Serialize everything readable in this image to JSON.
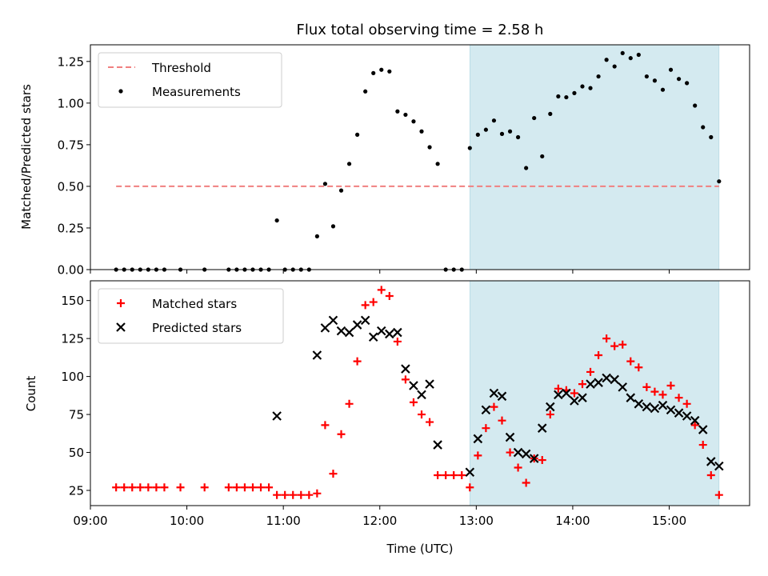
{
  "chart_data": [
    {
      "type": "scatter",
      "title": "Flux total observing time = 2.58 h",
      "xlabel": "",
      "ylabel": "Matched/Predicted stars",
      "xlim": [
        "09:00",
        "15:50"
      ],
      "ylim": [
        0,
        1.35
      ],
      "y_ticks": [
        "0.00",
        "0.25",
        "0.50",
        "0.75",
        "1.00",
        "1.25"
      ],
      "legend_position": "top-left",
      "highlight_span": {
        "start": "12:56",
        "end": "15:31"
      },
      "threshold": {
        "name": "Threshold",
        "value": 0.5,
        "from": "09:16",
        "to": "15:31",
        "color": "#f08080",
        "style": "dashed"
      },
      "series": [
        {
          "name": "Measurements",
          "marker": "dot",
          "color": "#000000",
          "points": [
            [
              "09:16",
              0.0
            ],
            [
              "09:21",
              0.0
            ],
            [
              "09:26",
              0.0
            ],
            [
              "09:31",
              0.0
            ],
            [
              "09:36",
              0.0
            ],
            [
              "09:41",
              0.0
            ],
            [
              "09:46",
              0.0
            ],
            [
              "09:56",
              0.0
            ],
            [
              "10:11",
              0.0
            ],
            [
              "10:26",
              0.0
            ],
            [
              "10:31",
              0.0
            ],
            [
              "10:36",
              0.0
            ],
            [
              "10:41",
              0.0
            ],
            [
              "10:46",
              0.0
            ],
            [
              "10:51",
              0.0
            ],
            [
              "10:56",
              0.295
            ],
            [
              "11:01",
              0.0
            ],
            [
              "11:06",
              0.0
            ],
            [
              "11:11",
              0.0
            ],
            [
              "11:16",
              0.0
            ],
            [
              "11:21",
              0.2
            ],
            [
              "11:26",
              0.515
            ],
            [
              "11:31",
              0.26
            ],
            [
              "11:36",
              0.475
            ],
            [
              "11:41",
              0.635
            ],
            [
              "11:46",
              0.81
            ],
            [
              "11:51",
              1.07
            ],
            [
              "11:56",
              1.18
            ],
            [
              "12:01",
              1.2
            ],
            [
              "12:06",
              1.19
            ],
            [
              "12:11",
              0.95
            ],
            [
              "12:16",
              0.93
            ],
            [
              "12:21",
              0.89
            ],
            [
              "12:26",
              0.83
            ],
            [
              "12:31",
              0.735
            ],
            [
              "12:36",
              0.635
            ],
            [
              "12:41",
              0.0
            ],
            [
              "12:46",
              0.0
            ],
            [
              "12:51",
              0.0
            ],
            [
              "12:56",
              0.73
            ],
            [
              "13:01",
              0.81
            ],
            [
              "13:06",
              0.84
            ],
            [
              "13:11",
              0.895
            ],
            [
              "13:16",
              0.815
            ],
            [
              "13:21",
              0.83
            ],
            [
              "13:26",
              0.795
            ],
            [
              "13:31",
              0.61
            ],
            [
              "13:36",
              0.91
            ],
            [
              "13:41",
              0.68
            ],
            [
              "13:46",
              0.935
            ],
            [
              "13:51",
              1.04
            ],
            [
              "13:56",
              1.035
            ],
            [
              "14:01",
              1.06
            ],
            [
              "14:06",
              1.1
            ],
            [
              "14:11",
              1.09
            ],
            [
              "14:16",
              1.16
            ],
            [
              "14:21",
              1.26
            ],
            [
              "14:26",
              1.22
            ],
            [
              "14:31",
              1.3
            ],
            [
              "14:36",
              1.27
            ],
            [
              "14:41",
              1.29
            ],
            [
              "14:46",
              1.16
            ],
            [
              "14:51",
              1.135
            ],
            [
              "14:56",
              1.08
            ],
            [
              "15:01",
              1.2
            ],
            [
              "15:06",
              1.145
            ],
            [
              "15:11",
              1.12
            ],
            [
              "15:16",
              0.985
            ],
            [
              "15:21",
              0.855
            ],
            [
              "15:26",
              0.795
            ],
            [
              "15:31",
              0.53
            ]
          ]
        }
      ]
    },
    {
      "type": "scatter",
      "title": "",
      "xlabel": "Time (UTC)",
      "ylabel": "Count",
      "xlim": [
        "09:00",
        "15:50"
      ],
      "ylim": [
        15,
        163
      ],
      "x_ticks": [
        "09:00",
        "10:00",
        "11:00",
        "12:00",
        "13:00",
        "14:00",
        "15:00"
      ],
      "y_ticks": [
        "25",
        "50",
        "75",
        "100",
        "125",
        "150"
      ],
      "legend_position": "top-left",
      "highlight_span": {
        "start": "12:56",
        "end": "15:31"
      },
      "series": [
        {
          "name": "Matched stars",
          "marker": "plus",
          "color": "#ff0000",
          "points": [
            [
              "09:16",
              27
            ],
            [
              "09:21",
              27
            ],
            [
              "09:26",
              27
            ],
            [
              "09:31",
              27
            ],
            [
              "09:36",
              27
            ],
            [
              "09:41",
              27
            ],
            [
              "09:46",
              27
            ],
            [
              "09:56",
              27
            ],
            [
              "10:11",
              27
            ],
            [
              "10:26",
              27
            ],
            [
              "10:31",
              27
            ],
            [
              "10:36",
              27
            ],
            [
              "10:41",
              27
            ],
            [
              "10:46",
              27
            ],
            [
              "10:51",
              27
            ],
            [
              "10:56",
              22
            ],
            [
              "11:01",
              22
            ],
            [
              "11:06",
              22
            ],
            [
              "11:11",
              22
            ],
            [
              "11:16",
              22
            ],
            [
              "11:21",
              23
            ],
            [
              "11:26",
              68
            ],
            [
              "11:31",
              36
            ],
            [
              "11:36",
              62
            ],
            [
              "11:41",
              82
            ],
            [
              "11:46",
              110
            ],
            [
              "11:51",
              147
            ],
            [
              "11:56",
              149
            ],
            [
              "12:01",
              157
            ],
            [
              "12:06",
              153
            ],
            [
              "12:11",
              123
            ],
            [
              "12:16",
              98
            ],
            [
              "12:21",
              83
            ],
            [
              "12:26",
              75
            ],
            [
              "12:31",
              70
            ],
            [
              "12:36",
              35
            ],
            [
              "12:41",
              35
            ],
            [
              "12:46",
              35
            ],
            [
              "12:51",
              35
            ],
            [
              "12:56",
              27
            ],
            [
              "13:01",
              48
            ],
            [
              "13:06",
              66
            ],
            [
              "13:11",
              80
            ],
            [
              "13:16",
              71
            ],
            [
              "13:21",
              50
            ],
            [
              "13:26",
              40
            ],
            [
              "13:31",
              30
            ],
            [
              "13:36",
              46
            ],
            [
              "13:41",
              45
            ],
            [
              "13:46",
              75
            ],
            [
              "13:51",
              92
            ],
            [
              "13:56",
              91
            ],
            [
              "14:01",
              89
            ],
            [
              "14:06",
              95
            ],
            [
              "14:11",
              103
            ],
            [
              "14:16",
              114
            ],
            [
              "14:21",
              125
            ],
            [
              "14:26",
              120
            ],
            [
              "14:31",
              121
            ],
            [
              "14:36",
              110
            ],
            [
              "14:41",
              106
            ],
            [
              "14:46",
              93
            ],
            [
              "14:51",
              90
            ],
            [
              "14:56",
              88
            ],
            [
              "15:01",
              94
            ],
            [
              "15:06",
              86
            ],
            [
              "15:11",
              82
            ],
            [
              "15:16",
              68
            ],
            [
              "15:21",
              55
            ],
            [
              "15:26",
              35
            ],
            [
              "15:31",
              22
            ]
          ]
        },
        {
          "name": "Predicted stars",
          "marker": "x",
          "color": "#000000",
          "points": [
            [
              "10:56",
              74
            ],
            [
              "11:21",
              114
            ],
            [
              "11:26",
              132
            ],
            [
              "11:31",
              137
            ],
            [
              "11:36",
              130
            ],
            [
              "11:41",
              129
            ],
            [
              "11:46",
              134
            ],
            [
              "11:51",
              137
            ],
            [
              "11:56",
              126
            ],
            [
              "12:01",
              130
            ],
            [
              "12:06",
              128
            ],
            [
              "12:11",
              129
            ],
            [
              "12:16",
              105
            ],
            [
              "12:21",
              94
            ],
            [
              "12:26",
              88
            ],
            [
              "12:31",
              95
            ],
            [
              "12:36",
              55
            ],
            [
              "12:56",
              37
            ],
            [
              "13:01",
              59
            ],
            [
              "13:06",
              78
            ],
            [
              "13:11",
              89
            ],
            [
              "13:16",
              87
            ],
            [
              "13:21",
              60
            ],
            [
              "13:26",
              50
            ],
            [
              "13:31",
              49
            ],
            [
              "13:36",
              46
            ],
            [
              "13:41",
              66
            ],
            [
              "13:46",
              80
            ],
            [
              "13:51",
              88
            ],
            [
              "13:56",
              89
            ],
            [
              "14:01",
              84
            ],
            [
              "14:06",
              86
            ],
            [
              "14:11",
              95
            ],
            [
              "14:16",
              96
            ],
            [
              "14:21",
              99
            ],
            [
              "14:26",
              98
            ],
            [
              "14:31",
              93
            ],
            [
              "14:36",
              86
            ],
            [
              "14:41",
              82
            ],
            [
              "14:46",
              80
            ],
            [
              "14:51",
              79
            ],
            [
              "14:56",
              81
            ],
            [
              "15:01",
              78
            ],
            [
              "15:06",
              76
            ],
            [
              "15:11",
              74
            ],
            [
              "15:16",
              71
            ],
            [
              "15:21",
              65
            ],
            [
              "15:26",
              44
            ],
            [
              "15:31",
              41
            ]
          ]
        }
      ]
    }
  ],
  "colors": {
    "highlight": "#d4eaf0",
    "axis": "#000000"
  }
}
